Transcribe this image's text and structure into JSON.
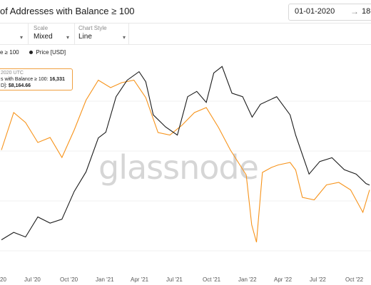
{
  "header": {
    "title": "of Addresses with Balance ≥ 100",
    "date_from": "01-01-2020",
    "date_arrow": "→",
    "date_to": "18-0"
  },
  "controls": [
    {
      "label": "",
      "value": "",
      "chevron": "▾"
    },
    {
      "label": "Scale",
      "value": "Mixed",
      "chevron": "▾"
    },
    {
      "label": "Chart Style",
      "value": "Line",
      "chevron": "▾"
    }
  ],
  "legend": {
    "series1": "e ≥ 100",
    "series2": "Price [USD]"
  },
  "tooltip": {
    "date": "2020 UTC",
    "line1_label": "s with Balance ≥ 100:",
    "line1_value": "16,331",
    "line2_label": "D]:",
    "line2_value": "$8,164.66"
  },
  "watermark": "glassnode",
  "colors": {
    "addresses": "#f7931a",
    "price": "#1a1a1a"
  },
  "chart_data": {
    "type": "line",
    "x_tick_labels": [
      "20",
      "Jul '20",
      "Oct '20",
      "Jan '21",
      "Apr '21",
      "Jul '21",
      "Oct '21",
      "Jan '22",
      "Apr '22",
      "Jul '22",
      "Oct '22"
    ],
    "x_range": [
      "2020-05-01",
      "2022-11-18"
    ],
    "series": [
      {
        "name": "e ≥ 100",
        "color": "#f7931a",
        "x": [
          "2020-05-01",
          "2020-06-01",
          "2020-07-01",
          "2020-08-01",
          "2020-09-01",
          "2020-10-01",
          "2020-11-01",
          "2020-12-01",
          "2021-01-01",
          "2021-02-01",
          "2021-03-01",
          "2021-04-01",
          "2021-05-01",
          "2021-06-01",
          "2021-07-01",
          "2021-08-01",
          "2021-09-01",
          "2021-10-01",
          "2021-11-01",
          "2021-12-01",
          "2022-01-10",
          "2022-01-24",
          "2022-02-05",
          "2022-02-20",
          "2022-03-15",
          "2022-04-01",
          "2022-05-01",
          "2022-05-15",
          "2022-06-01",
          "2022-07-01",
          "2022-08-01",
          "2022-09-01",
          "2022-10-01",
          "2022-11-01",
          "2022-11-18"
        ],
        "values": [
          16150,
          16300,
          16260,
          16180,
          16200,
          16120,
          16230,
          16350,
          16430,
          16400,
          16420,
          16430,
          16360,
          16220,
          16210,
          16250,
          16300,
          16320,
          16240,
          16150,
          16050,
          15850,
          15780,
          16060,
          16080,
          16090,
          16100,
          16070,
          15960,
          15950,
          16010,
          16020,
          15990,
          15900,
          15990
        ]
      },
      {
        "name": "Price [USD]",
        "color": "#1a1a1a",
        "x": [
          "2020-05-01",
          "2020-06-01",
          "2020-07-01",
          "2020-08-01",
          "2020-09-01",
          "2020-10-01",
          "2020-11-01",
          "2020-12-01",
          "2021-01-01",
          "2021-01-20",
          "2021-02-15",
          "2021-03-15",
          "2021-04-14",
          "2021-05-01",
          "2021-05-20",
          "2021-06-20",
          "2021-07-20",
          "2021-08-15",
          "2021-09-07",
          "2021-10-01",
          "2021-10-20",
          "2021-11-10",
          "2021-12-05",
          "2022-01-01",
          "2022-01-25",
          "2022-02-15",
          "2022-03-28",
          "2022-05-01",
          "2022-05-15",
          "2022-06-18",
          "2022-07-15",
          "2022-08-15",
          "2022-09-15",
          "2022-10-15",
          "2022-11-09",
          "2022-11-18"
        ],
        "values": [
          8800,
          9600,
          9100,
          11500,
          10700,
          11200,
          15500,
          19500,
          29000,
          31000,
          47000,
          57000,
          63000,
          56000,
          38000,
          33000,
          30000,
          47000,
          50000,
          44000,
          62000,
          67000,
          49000,
          47000,
          37000,
          43000,
          47000,
          38000,
          30000,
          19000,
          22000,
          23000,
          20000,
          19000,
          17000,
          16700
        ]
      }
    ]
  }
}
